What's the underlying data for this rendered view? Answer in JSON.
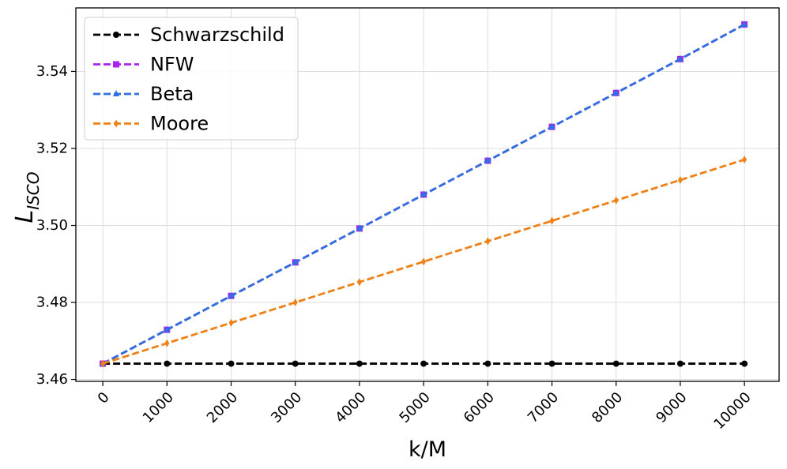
{
  "chart_data": {
    "type": "line",
    "title": "",
    "xlabel": "k/M",
    "ylabel_main": "L",
    "ylabel_sub": "ISCO",
    "x": [
      0,
      1000,
      2000,
      3000,
      4000,
      5000,
      6000,
      7000,
      8000,
      9000,
      10000
    ],
    "x_tick_labels": [
      "0",
      "1000",
      "2000",
      "3000",
      "4000",
      "5000",
      "6000",
      "7000",
      "8000",
      "9000",
      "10000"
    ],
    "ylim": [
      3.4595,
      3.5565
    ],
    "y_ticks": [
      3.46,
      3.48,
      3.5,
      3.52,
      3.54
    ],
    "y_tick_labels": [
      "3.46",
      "3.48",
      "3.50",
      "3.52",
      "3.54"
    ],
    "grid": true,
    "legend_position": "top-left",
    "series": [
      {
        "name": "Schwarzschild",
        "color": "#000000",
        "marker": "circle",
        "values": [
          3.4641,
          3.4641,
          3.4641,
          3.4641,
          3.4641,
          3.4641,
          3.4641,
          3.4641,
          3.4641,
          3.4641,
          3.4641
        ]
      },
      {
        "name": "NFW",
        "color": "#aa22ee",
        "marker": "square",
        "values": [
          3.4641,
          3.4729,
          3.4817,
          3.4904,
          3.4992,
          3.508,
          3.5168,
          3.5256,
          3.5344,
          3.5432,
          3.5522
        ]
      },
      {
        "name": "Beta",
        "color": "#2f6fe0",
        "marker": "triangle",
        "values": [
          3.4641,
          3.4729,
          3.4817,
          3.4904,
          3.4992,
          3.508,
          3.5168,
          3.5256,
          3.5344,
          3.5432,
          3.5522
        ]
      },
      {
        "name": "Moore",
        "color": "#ef8016",
        "marker": "diamond",
        "values": [
          3.4641,
          3.4694,
          3.4747,
          3.48,
          3.4853,
          3.4906,
          3.4959,
          3.5012,
          3.5065,
          3.5118,
          3.5171
        ]
      }
    ]
  }
}
